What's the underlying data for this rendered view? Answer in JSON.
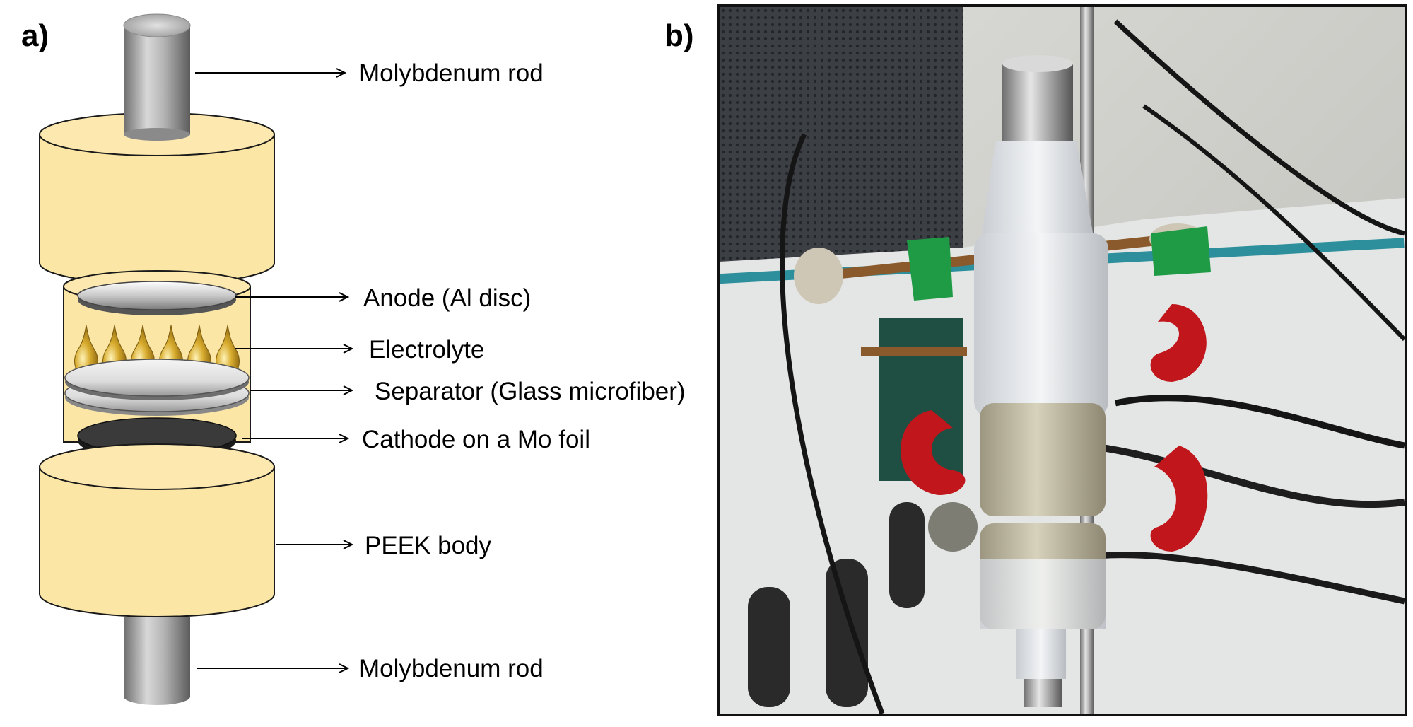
{
  "panels": {
    "a": {
      "label": "a)"
    },
    "b": {
      "label": "b)"
    }
  },
  "callouts": {
    "molybdenum_rod_top": "Molybdenum rod",
    "anode": "Anode (Al disc)",
    "electrolyte": "Electrolyte",
    "separator": "Separator (Glass microfiber)",
    "cathode": "Cathode on a Mo foil",
    "peek_body": "PEEK body",
    "molybdenum_rod_bottom": "Molybdenum rod"
  },
  "colors": {
    "peek": "#fbe6a6",
    "peek_edge": "#1a1a1a",
    "rod": "#a8a8a8",
    "electrolyte": "#d6a92b",
    "cathode": "#333333",
    "clip_red": "#c0161c",
    "clamp_green": "#1f9a45"
  }
}
